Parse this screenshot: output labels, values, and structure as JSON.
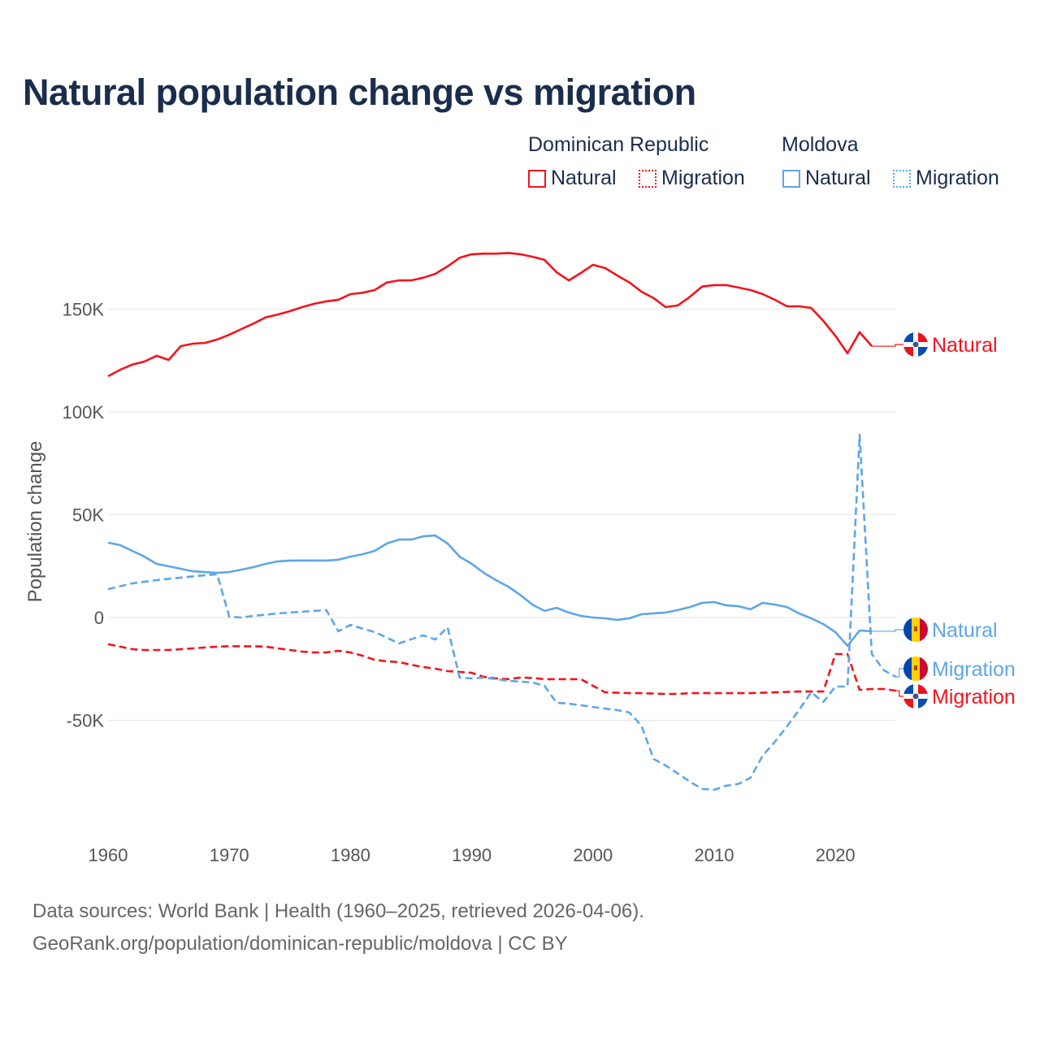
{
  "chart_data": {
    "type": "line",
    "title": "Natural population change vs migration",
    "ylabel": "Population change",
    "xlabel": "",
    "xlim": [
      1960,
      2025
    ],
    "ylim": [
      -100000,
      190000
    ],
    "grid": true,
    "x_ticks": [
      1960,
      1970,
      1980,
      1990,
      2000,
      2010,
      2020
    ],
    "x_tick_labels": [
      "1960",
      "1970",
      "1980",
      "1990",
      "2000",
      "2010",
      "2020"
    ],
    "y_ticks": [
      150000,
      100000,
      50000,
      0,
      -50000
    ],
    "y_tick_labels": [
      "150K",
      "100K",
      "50K",
      "0",
      "-50K"
    ],
    "legend_position": "top-right",
    "legend_groups": [
      {
        "country": "Dominican Republic",
        "items": [
          "Natural",
          "Migration"
        ]
      },
      {
        "country": "Moldova",
        "items": [
          "Natural",
          "Migration"
        ]
      }
    ],
    "series": [
      {
        "country": "Dominican Republic",
        "name": "Natural",
        "label": "Natural",
        "color": "#f5121c",
        "dash": false,
        "flag": "dominican-republic",
        "x_start": 1960,
        "values": [
          117.4,
          120.5,
          123,
          124.5,
          127.3,
          125.3,
          132,
          133.2,
          133.6,
          135.2,
          137.6,
          140.3,
          143,
          146,
          147.4,
          149,
          151,
          152.6,
          153.8,
          154.6,
          157.3,
          158,
          159.3,
          163,
          164,
          164,
          165.3,
          167.2,
          170.8,
          175,
          176.7,
          177,
          177,
          177.3,
          176.7,
          175.5,
          174,
          168,
          164,
          167.6,
          171.6,
          170,
          166.4,
          163,
          158.5,
          155.4,
          151,
          151.8,
          156,
          161,
          161.7,
          161.7,
          160.5,
          159.3,
          157.3,
          154.6,
          151.4,
          151.4,
          150.6,
          144.3,
          137,
          128.5,
          138.8,
          132
        ]
      },
      {
        "country": "Dominican Republic",
        "name": "Migration",
        "label": "Migration",
        "color": "#f5121c",
        "dash": true,
        "flag": "dominican-republic",
        "x_start": 1960,
        "values": [
          -13,
          -14.2,
          -15.4,
          -15.8,
          -15.8,
          -15.8,
          -15.4,
          -15,
          -14.6,
          -14.2,
          -14,
          -14,
          -14,
          -14.2,
          -15,
          -15.8,
          -16.6,
          -17,
          -17,
          -16.2,
          -17,
          -18.6,
          -20.6,
          -21.3,
          -21.7,
          -23,
          -24.1,
          -24.9,
          -26.1,
          -26.5,
          -26.9,
          -28.9,
          -29.6,
          -30,
          -29.2,
          -29.4,
          -30,
          -30,
          -30,
          -30,
          -33.2,
          -36.4,
          -36.6,
          -36.8,
          -36.8,
          -37,
          -37.2,
          -37.2,
          -36.8,
          -36.8,
          -36.8,
          -36.8,
          -36.8,
          -36.8,
          -36.6,
          -36.4,
          -36.2,
          -36,
          -36,
          -36,
          -17.8,
          -17.8,
          -35.2,
          -34.8,
          -34.8,
          -35.6
        ]
      },
      {
        "country": "Moldova",
        "name": "Natural",
        "label": "Natural",
        "color": "#5ea6e8",
        "dash": false,
        "flag": "moldova",
        "x_start": 1960,
        "values": [
          36.4,
          35.2,
          32.4,
          29.6,
          26.1,
          24.9,
          23.7,
          22.5,
          22.1,
          21.7,
          22.1,
          23.3,
          24.5,
          26.1,
          27.3,
          27.7,
          27.7,
          27.7,
          27.7,
          28.1,
          29.6,
          30.8,
          32.4,
          36,
          37.9,
          37.9,
          39.5,
          39.9,
          36,
          29.6,
          26.1,
          21.7,
          18.2,
          15,
          11,
          6.3,
          3.2,
          4.7,
          2.4,
          0.8,
          0,
          -0.4,
          -1.2,
          -0.4,
          1.6,
          2,
          2.4,
          3.6,
          5.1,
          7.1,
          7.5,
          5.9,
          5.5,
          4,
          7.1,
          6.3,
          5.1,
          2,
          -0.4,
          -3.2,
          -7.1,
          -13.8,
          -6.3,
          -6.7
        ]
      },
      {
        "country": "Moldova",
        "name": "Migration",
        "label": "Migration",
        "color": "#5ea6e8",
        "dash": true,
        "flag": "moldova",
        "x_start": 1960,
        "values": [
          13.8,
          15.2,
          16.6,
          17.4,
          18.2,
          18.8,
          19.4,
          20,
          20.6,
          21,
          0.4,
          0,
          0.8,
          1.4,
          2,
          2.4,
          2.8,
          3.2,
          3.6,
          -6.7,
          -3.6,
          -5.4,
          -7.1,
          -9.8,
          -12.6,
          -10.6,
          -8.7,
          -10.7,
          -4.7,
          -29.2,
          -29.6,
          -29.2,
          -30,
          -30.8,
          -31.2,
          -31.6,
          -33.2,
          -41.5,
          -41.9,
          -42.7,
          -43.5,
          -44.3,
          -45,
          -46.2,
          -52.6,
          -68.8,
          -72,
          -75.9,
          -79.9,
          -83.4,
          -83.8,
          -81.8,
          -81,
          -77.9,
          -67.2,
          -60.5,
          -53,
          -45,
          -36.4,
          -41.1,
          -33.6,
          -33.6,
          88.9,
          -17.8,
          -25.7,
          -28.9
        ]
      }
    ],
    "value_unit": "thousands"
  },
  "legend": {
    "dr_heading": "Dominican Republic",
    "md_heading": "Moldova",
    "natural": "Natural",
    "migration": "Migration"
  },
  "footer": {
    "source": "Data sources: World Bank | Health (1960–2025, retrieved 2026-04-06).",
    "link": "GeoRank.org/population/dominican-republic/moldova | CC BY"
  }
}
